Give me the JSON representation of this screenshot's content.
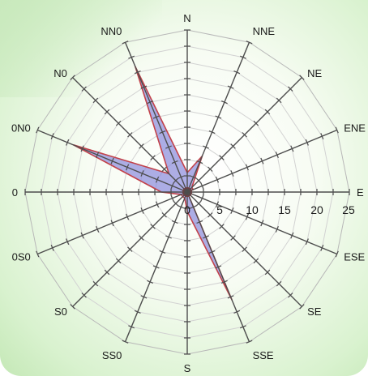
{
  "chart_data": {
    "type": "radar",
    "categories": [
      "N",
      "NNE",
      "NE",
      "ENE",
      "E",
      "ESE",
      "SE",
      "SSE",
      "S",
      "SS0",
      "S0",
      "0S0",
      "0",
      "0N0",
      "N0",
      "NN0"
    ],
    "series": [
      {
        "values": [
          3,
          6,
          1,
          1,
          0,
          0,
          0,
          18,
          3,
          1,
          1,
          1,
          4,
          19,
          4,
          21
        ],
        "fill": "#8a8adc",
        "stroke": "#c2424a"
      }
    ],
    "rlim": [
      0,
      25
    ],
    "rticks": [
      "0",
      "5",
      "10",
      "15",
      "20",
      "25"
    ],
    "grid": true
  }
}
